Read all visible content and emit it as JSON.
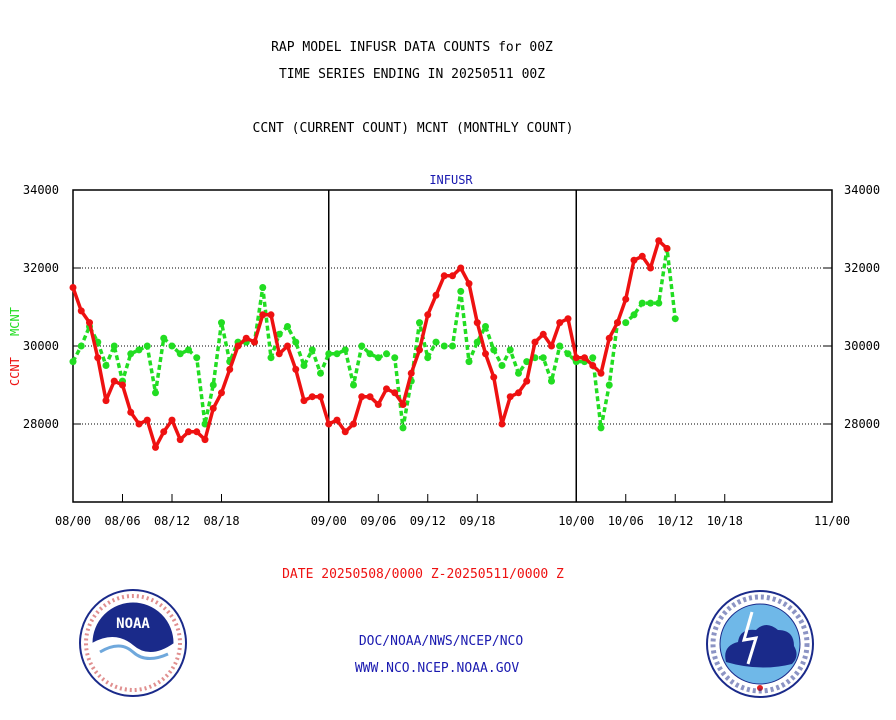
{
  "header": {
    "title_line1": "RAP MODEL INFUSR DATA COUNTS for 00Z",
    "title_line2": "TIME SERIES ENDING IN 20250511 00Z",
    "subtitle": "CCNT (CURRENT COUNT) MCNT (MONTHLY COUNT)"
  },
  "footer": {
    "date_range": "DATE 20250508/0000 Z-20250511/0000 Z",
    "org_line": "DOC/NOAA/NWS/NCEP/NCO",
    "url_line": "WWW.NCO.NCEP.NOAA.GOV"
  },
  "logos": {
    "noaa_text": "NOAA",
    "nws_text": "NATIONAL WEATHER SERVICE"
  },
  "colors": {
    "ccnt": "#ee1111",
    "mcnt": "#22dd22",
    "title": "#000000",
    "panel_label": "#1a1ab0",
    "date_range": "#ee1111",
    "footer_text": "#1a1ab0"
  },
  "chart_data": {
    "type": "line",
    "panel_label": "INFUSR",
    "ylabel_ccnt": "CCNT",
    "ylabel_mcnt": "MCNT",
    "ylim": [
      26000,
      34000
    ],
    "yticks": [
      28000,
      30000,
      32000,
      34000
    ],
    "ytick_labels": [
      "28000",
      "30000",
      "32000",
      "34000"
    ],
    "x_range": [
      0,
      92
    ],
    "xticks": [
      0,
      6,
      12,
      18,
      31,
      37,
      43,
      49,
      61,
      67,
      73,
      79,
      92
    ],
    "xtick_labels": [
      "08/00",
      "08/06",
      "08/12",
      "08/18",
      "09/00",
      "09/06",
      "09/12",
      "09/18",
      "10/00",
      "10/06",
      "10/12",
      "10/18",
      "11/00"
    ],
    "dividers": [
      31,
      61
    ],
    "gridlines": [
      28000,
      30000,
      32000
    ],
    "series": [
      {
        "name": "CCNT",
        "values": [
          31500,
          30900,
          30600,
          29700,
          28600,
          29100,
          29000,
          28300,
          28000,
          28100,
          27400,
          27800,
          28100,
          27600,
          27800,
          27800,
          27600,
          28400,
          28800,
          29400,
          30000,
          30200,
          30100,
          30800,
          30800,
          29800,
          30000,
          29400,
          28600,
          28700,
          28700,
          28000,
          28100,
          27800,
          28000,
          28700,
          28700,
          28500,
          28900,
          28800,
          28500,
          29300,
          29900,
          30800,
          31300,
          31800,
          31800,
          32000,
          31600,
          30600,
          29800,
          29200,
          28000,
          28700,
          28800,
          29100,
          30100,
          30300,
          30000,
          30600,
          30700,
          29700,
          29700,
          29500,
          29300,
          30200,
          30600,
          31200,
          32200,
          32300,
          32000,
          32700,
          32500
        ]
      },
      {
        "name": "MCNT",
        "values": [
          29600,
          30000,
          30500,
          30100,
          29500,
          30000,
          29100,
          29800,
          29900,
          30000,
          28800,
          30200,
          30000,
          29800,
          29900,
          29700,
          28000,
          29000,
          30600,
          29600,
          30100,
          30100,
          30100,
          31500,
          29700,
          30300,
          30500,
          30100,
          29500,
          29900,
          29300,
          29800,
          29800,
          29900,
          29000,
          30000,
          29800,
          29700,
          29800,
          29700,
          27900,
          29100,
          30600,
          29700,
          30100,
          30000,
          30000,
          31400,
          29600,
          30100,
          30500,
          29900,
          29500,
          29900,
          29300,
          29600,
          29700,
          29700,
          29100,
          30000,
          29800,
          29600,
          29600,
          29700,
          27900,
          29000,
          30600,
          30600,
          30800,
          31100,
          31100,
          31100,
          32500,
          30700
        ]
      }
    ]
  }
}
